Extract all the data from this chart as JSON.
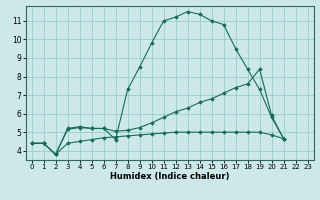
{
  "xlabel": "Humidex (Indice chaleur)",
  "x_ticks": [
    0,
    1,
    2,
    3,
    4,
    5,
    6,
    7,
    8,
    9,
    10,
    11,
    12,
    13,
    14,
    15,
    16,
    17,
    18,
    19,
    20,
    21,
    22,
    23
  ],
  "y_ticks": [
    4,
    5,
    6,
    7,
    8,
    9,
    10,
    11
  ],
  "xlim": [
    -0.5,
    23.5
  ],
  "ylim": [
    3.5,
    11.8
  ],
  "bg_color": "#cce8e8",
  "grid_color": "#99cccc",
  "line_color": "#1a6b5a",
  "lines": [
    {
      "x": [
        0,
        1,
        2,
        3,
        4,
        5,
        6,
        7,
        8,
        9,
        10,
        11,
        12,
        13,
        14,
        15,
        16,
        17,
        18,
        19,
        20,
        21,
        22,
        23
      ],
      "y": [
        4.4,
        4.4,
        3.8,
        5.2,
        5.3,
        5.2,
        5.2,
        4.6,
        7.3,
        8.5,
        9.8,
        11.0,
        11.2,
        11.5,
        11.35,
        11.0,
        10.8,
        9.5,
        8.4,
        7.3,
        5.8,
        4.65,
        null,
        null
      ]
    },
    {
      "x": [
        0,
        1,
        2,
        3,
        4,
        5,
        6,
        7,
        8,
        9,
        10,
        11,
        12,
        13,
        14,
        15,
        16,
        17,
        18,
        19,
        20,
        21,
        22,
        23
      ],
      "y": [
        4.4,
        4.4,
        3.8,
        5.15,
        5.25,
        5.2,
        5.2,
        5.05,
        5.1,
        5.25,
        5.5,
        5.8,
        6.1,
        6.3,
        6.6,
        6.8,
        7.1,
        7.4,
        7.6,
        8.4,
        5.9,
        4.65,
        null,
        null
      ]
    },
    {
      "x": [
        0,
        1,
        2,
        3,
        4,
        5,
        6,
        7,
        8,
        9,
        10,
        11,
        12,
        13,
        14,
        15,
        16,
        17,
        18,
        19,
        20,
        21,
        22,
        23
      ],
      "y": [
        4.4,
        4.4,
        3.8,
        4.4,
        4.5,
        4.6,
        4.7,
        4.75,
        4.8,
        4.85,
        4.9,
        4.95,
        5.0,
        5.0,
        5.0,
        5.0,
        5.0,
        5.0,
        5.0,
        5.0,
        4.85,
        4.65,
        null,
        null
      ]
    }
  ]
}
